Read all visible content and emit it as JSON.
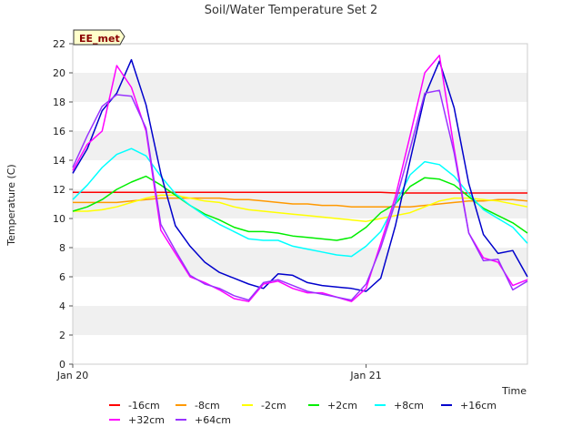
{
  "chart_data": {
    "type": "line",
    "title": "Soil/Water Temperature Set 2",
    "xlabel": "Time",
    "ylabel": "Temperature (C)",
    "badge": "EE_met",
    "ylim": [
      0,
      22
    ],
    "yticks": [
      0,
      2,
      4,
      6,
      8,
      10,
      12,
      14,
      16,
      18,
      20,
      22
    ],
    "xlim": [
      0,
      1.55
    ],
    "xticks": [
      {
        "value": 0,
        "label": "Jan 20"
      },
      {
        "value": 1,
        "label": "Jan 21"
      }
    ],
    "grid": "horizontal bands",
    "legend_position": "bottom",
    "x": [
      0,
      0.05,
      0.1,
      0.15,
      0.2,
      0.25,
      0.3,
      0.35,
      0.4,
      0.45,
      0.5,
      0.55,
      0.6,
      0.65,
      0.7,
      0.75,
      0.8,
      0.85,
      0.9,
      0.95,
      1.0,
      1.05,
      1.1,
      1.15,
      1.2,
      1.25,
      1.3,
      1.35,
      1.4,
      1.45,
      1.5,
      1.55
    ],
    "series": [
      {
        "name": "-16cm",
        "color": "#ff0000",
        "values": [
          11.8,
          11.8,
          11.8,
          11.8,
          11.8,
          11.8,
          11.8,
          11.8,
          11.8,
          11.8,
          11.8,
          11.8,
          11.8,
          11.8,
          11.8,
          11.8,
          11.8,
          11.8,
          11.8,
          11.8,
          11.8,
          11.8,
          11.75,
          11.75,
          11.75,
          11.75,
          11.75,
          11.75,
          11.75,
          11.75,
          11.75,
          11.75
        ]
      },
      {
        "name": "-8cm",
        "color": "#ff9900",
        "values": [
          11.1,
          11.1,
          11.1,
          11.1,
          11.2,
          11.3,
          11.4,
          11.4,
          11.4,
          11.4,
          11.4,
          11.3,
          11.3,
          11.2,
          11.1,
          11.0,
          11.0,
          10.9,
          10.9,
          10.8,
          10.8,
          10.8,
          10.8,
          10.8,
          10.9,
          11.0,
          11.1,
          11.2,
          11.2,
          11.3,
          11.3,
          11.2
        ]
      },
      {
        "name": "-2cm",
        "color": "#ffff00",
        "values": [
          10.5,
          10.5,
          10.6,
          10.8,
          11.1,
          11.4,
          11.6,
          11.6,
          11.4,
          11.2,
          11.1,
          10.8,
          10.6,
          10.5,
          10.4,
          10.3,
          10.2,
          10.1,
          10.0,
          9.9,
          9.8,
          10.0,
          10.2,
          10.4,
          10.8,
          11.2,
          11.4,
          11.4,
          11.3,
          11.2,
          11.0,
          10.8
        ]
      },
      {
        "name": "+2cm",
        "color": "#00ee00",
        "values": [
          10.5,
          10.8,
          11.3,
          12.0,
          12.5,
          12.9,
          12.3,
          11.6,
          10.9,
          10.3,
          9.9,
          9.4,
          9.1,
          9.1,
          9.0,
          8.8,
          8.7,
          8.6,
          8.5,
          8.7,
          9.4,
          10.4,
          11.0,
          12.2,
          12.8,
          12.7,
          12.3,
          11.5,
          10.7,
          10.2,
          9.7,
          9.0
        ]
      },
      {
        "name": "+8cm",
        "color": "#00ffff",
        "values": [
          11.3,
          12.3,
          13.5,
          14.4,
          14.8,
          14.3,
          12.9,
          11.7,
          10.9,
          10.2,
          9.6,
          9.1,
          8.6,
          8.5,
          8.5,
          8.1,
          7.9,
          7.7,
          7.5,
          7.4,
          8.1,
          9.1,
          11.0,
          13.0,
          13.9,
          13.7,
          12.9,
          11.7,
          10.6,
          10.0,
          9.4,
          8.3
        ]
      },
      {
        "name": "+16cm",
        "color": "#0000cc",
        "values": [
          13.1,
          14.8,
          17.4,
          18.6,
          20.9,
          17.8,
          13.1,
          9.5,
          8.1,
          7.0,
          6.3,
          5.9,
          5.5,
          5.2,
          6.2,
          6.1,
          5.6,
          5.4,
          5.3,
          5.2,
          5.0,
          5.9,
          9.5,
          14.0,
          18.4,
          20.8,
          17.6,
          12.4,
          8.9,
          7.6,
          7.8,
          6.0
        ]
      },
      {
        "name": "+32cm",
        "color": "#ff00ff",
        "values": [
          13.3,
          15.1,
          16.0,
          20.5,
          19.0,
          16.0,
          9.2,
          7.6,
          6.0,
          5.6,
          5.1,
          4.5,
          4.3,
          5.5,
          5.7,
          5.2,
          4.9,
          4.9,
          4.6,
          4.3,
          5.2,
          8.3,
          11.5,
          15.7,
          20.0,
          21.2,
          14.8,
          9.0,
          7.3,
          7.0,
          5.4,
          5.8
        ]
      },
      {
        "name": "+64cm",
        "color": "#9933ff",
        "values": [
          13.5,
          15.7,
          17.7,
          18.5,
          18.4,
          16.2,
          9.6,
          7.8,
          6.1,
          5.5,
          5.2,
          4.7,
          4.4,
          5.6,
          5.8,
          5.4,
          5.0,
          4.8,
          4.6,
          4.4,
          5.5,
          8.0,
          11.1,
          14.8,
          18.6,
          18.8,
          14.5,
          9.0,
          7.1,
          7.2,
          5.1,
          5.7
        ]
      }
    ]
  }
}
